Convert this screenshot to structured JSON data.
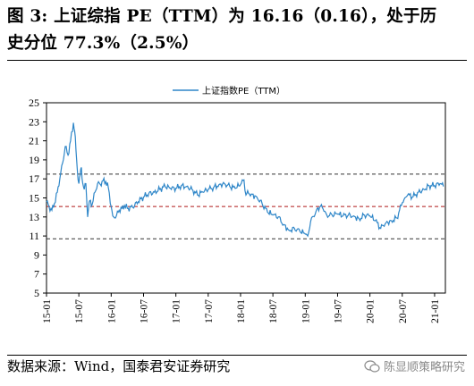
{
  "header": {
    "title_line1": "图 3:  上证综指 PE（TTM）为 16.16（0.16），处于历",
    "title_line2": "史分位 77.3%（2.5%）"
  },
  "footer": {
    "source": "数据来源：Wind，国泰君安证券研究",
    "watermark": "陈显顺策略研究"
  },
  "colors": {
    "series": "#2e86c8",
    "upper": "#333333",
    "median": "#b01818",
    "lower": "#333333"
  },
  "chart_data": {
    "type": "line",
    "title": "",
    "legend": [
      "上证指数PE（TTM）"
    ],
    "legend_position": "top-center",
    "ylim": [
      5,
      25
    ],
    "yticks": [
      5,
      7,
      9,
      11,
      13,
      15,
      17,
      19,
      21,
      23,
      25
    ],
    "xticks": [
      "15-01",
      "15-07",
      "16-01",
      "16-07",
      "17-01",
      "17-07",
      "18-01",
      "18-07",
      "19-01",
      "19-07",
      "20-01",
      "20-07",
      "21-01"
    ],
    "xlim": [
      "2015-01",
      "2021-03"
    ],
    "grid": false,
    "reference_lines": [
      {
        "name": "upper",
        "value": 17.5,
        "style": "dashed"
      },
      {
        "name": "median",
        "value": 14.1,
        "style": "dashed"
      },
      {
        "name": "lower",
        "value": 10.7,
        "style": "dashed"
      }
    ],
    "series": [
      {
        "name": "上证指数PE（TTM）",
        "x": [
          "2015-01",
          "2015-01-15",
          "2015-02",
          "2015-02-15",
          "2015-03",
          "2015-03-15",
          "2015-04",
          "2015-04-15",
          "2015-05",
          "2015-05-15",
          "2015-06",
          "2015-06-08",
          "2015-06-15",
          "2015-06-22",
          "2015-07",
          "2015-07-08",
          "2015-07-15",
          "2015-07-22",
          "2015-08",
          "2015-08-10",
          "2015-08-20",
          "2015-08-26",
          "2015-09",
          "2015-09-15",
          "2015-10",
          "2015-10-15",
          "2015-11",
          "2015-11-15",
          "2015-12",
          "2015-12-15",
          "2016-01",
          "2016-01-10",
          "2016-01-20",
          "2016-02",
          "2016-02-15",
          "2016-03",
          "2016-03-15",
          "2016-04",
          "2016-05",
          "2016-06",
          "2016-07",
          "2016-08",
          "2016-09",
          "2016-10",
          "2016-11",
          "2016-12",
          "2017-01",
          "2017-02",
          "2017-03",
          "2017-04",
          "2017-05",
          "2017-06",
          "2017-07",
          "2017-08",
          "2017-09",
          "2017-10",
          "2017-11",
          "2017-12",
          "2018-01",
          "2018-01-20",
          "2018-02",
          "2018-02-15",
          "2018-03",
          "2018-04",
          "2018-05",
          "2018-06",
          "2018-07",
          "2018-08",
          "2018-09",
          "2018-10",
          "2018-11",
          "2018-12",
          "2019-01",
          "2019-01-15",
          "2019-02",
          "2019-03",
          "2019-04",
          "2019-04-15",
          "2019-05",
          "2019-06",
          "2019-07",
          "2019-08",
          "2019-09",
          "2019-10",
          "2019-11",
          "2019-12",
          "2020-01",
          "2020-02",
          "2020-03",
          "2020-03-15",
          "2020-04",
          "2020-05",
          "2020-06",
          "2020-07",
          "2020-07-15",
          "2020-08",
          "2020-09",
          "2020-10",
          "2020-11",
          "2020-12",
          "2021-01",
          "2021-02",
          "2021-02-20"
        ],
        "values": [
          14.6,
          14.1,
          13.7,
          14.4,
          15.6,
          17.0,
          18.7,
          20.4,
          19.5,
          21.0,
          22.9,
          22.0,
          20.1,
          18.0,
          16.5,
          17.4,
          18.2,
          16.6,
          15.9,
          16.5,
          13.0,
          14.1,
          14.7,
          14.3,
          15.6,
          16.5,
          16.4,
          16.8,
          16.7,
          16.1,
          14.1,
          13.1,
          12.9,
          13.2,
          13.7,
          13.9,
          14.2,
          13.9,
          14.0,
          14.6,
          15.1,
          15.5,
          15.6,
          15.9,
          16.2,
          16.0,
          16.0,
          16.3,
          16.2,
          15.9,
          15.3,
          15.6,
          15.9,
          16.1,
          16.4,
          16.5,
          16.2,
          16.0,
          16.4,
          16.9,
          15.3,
          15.5,
          15.4,
          15.1,
          14.4,
          13.5,
          13.2,
          13.0,
          12.2,
          11.6,
          11.8,
          11.5,
          11.2,
          11.0,
          12.5,
          13.6,
          14.3,
          13.6,
          13.2,
          13.2,
          13.3,
          13.1,
          13.2,
          13.1,
          12.8,
          13.2,
          13.1,
          12.6,
          11.8,
          12.1,
          12.4,
          12.6,
          12.9,
          14.5,
          15.0,
          15.3,
          15.1,
          15.6,
          15.9,
          16.3,
          16.3,
          16.5,
          16.2
        ]
      }
    ]
  }
}
